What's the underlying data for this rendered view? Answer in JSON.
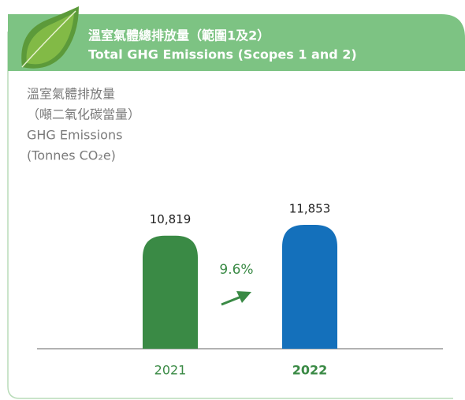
{
  "chart_data": {
    "type": "bar",
    "title": "溫室氣體總排放量（範圍1及2）",
    "subtitle": "Total GHG Emissions (Scopes 1 and 2)",
    "y_label": [
      "溫室氣體排放量",
      "（噸二氧化碳當量）",
      "GHG Emissions",
      "(Tonnes CO₂e)"
    ],
    "categories": [
      "2021",
      "2022"
    ],
    "values": [
      10819,
      11853
    ],
    "value_labels": [
      "10,819",
      "11,853"
    ],
    "colors": [
      "#3a8a45",
      "#1470bb"
    ],
    "annotation": "9.6%"
  }
}
